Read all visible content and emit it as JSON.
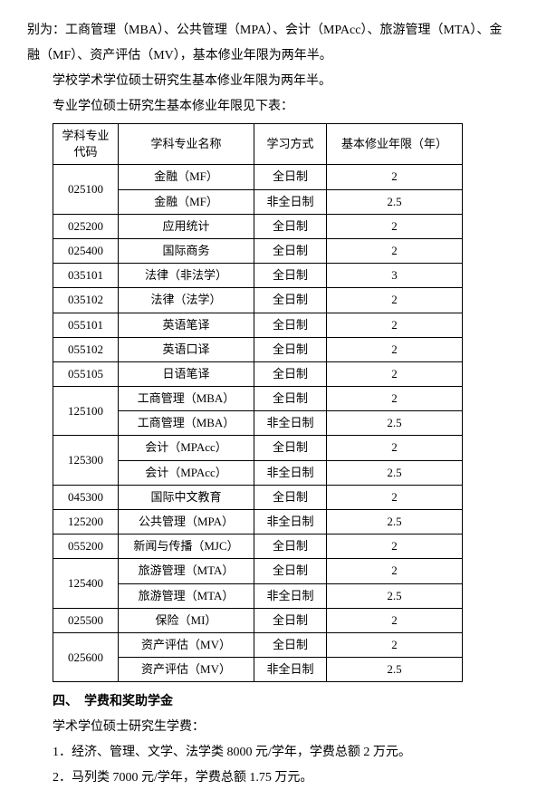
{
  "intro": {
    "line1": "别为：工商管理（MBA）、公共管理（MPA）、会计（MPAcc）、旅游管理（MTA）、金融（MF）、资产评估（MV），基本修业年限为两年半。",
    "line2": "学校学术学位硕士研究生基本修业年限为两年半。",
    "line3": "专业学位硕士研究生基本修业年限见下表："
  },
  "table": {
    "headers": [
      "学科专业代码",
      "学科专业名称",
      "学习方式",
      "基本修业年限（年）"
    ],
    "rows": [
      {
        "code": "025100",
        "codeRowspan": 2,
        "name": "金融（MF）",
        "mode": "全日制",
        "years": "2"
      },
      {
        "name": "金融（MF）",
        "mode": "非全日制",
        "years": "2.5"
      },
      {
        "code": "025200",
        "codeRowspan": 1,
        "name": "应用统计",
        "mode": "全日制",
        "years": "2"
      },
      {
        "code": "025400",
        "codeRowspan": 1,
        "name": "国际商务",
        "mode": "全日制",
        "years": "2"
      },
      {
        "code": "035101",
        "codeRowspan": 1,
        "name": "法律（非法学）",
        "mode": "全日制",
        "years": "3"
      },
      {
        "code": "035102",
        "codeRowspan": 1,
        "name": "法律（法学）",
        "mode": "全日制",
        "years": "2"
      },
      {
        "code": "055101",
        "codeRowspan": 1,
        "name": "英语笔译",
        "mode": "全日制",
        "years": "2"
      },
      {
        "code": "055102",
        "codeRowspan": 1,
        "name": "英语口译",
        "mode": "全日制",
        "years": "2"
      },
      {
        "code": "055105",
        "codeRowspan": 1,
        "name": "日语笔译",
        "mode": "全日制",
        "years": "2"
      },
      {
        "code": "125100",
        "codeRowspan": 2,
        "name": "工商管理（MBA）",
        "mode": "全日制",
        "years": "2"
      },
      {
        "name": "工商管理（MBA）",
        "mode": "非全日制",
        "years": "2.5"
      },
      {
        "code": "125300",
        "codeRowspan": 2,
        "name": "会计（MPAcc）",
        "mode": "全日制",
        "years": "2"
      },
      {
        "name": "会计（MPAcc）",
        "mode": "非全日制",
        "years": "2.5"
      },
      {
        "code": "045300",
        "codeRowspan": 1,
        "name": "国际中文教育",
        "mode": "全日制",
        "years": "2"
      },
      {
        "code": "125200",
        "codeRowspan": 1,
        "name": "公共管理（MPA）",
        "mode": "非全日制",
        "years": "2.5"
      },
      {
        "code": "055200",
        "codeRowspan": 1,
        "name": "新闻与传播（MJC）",
        "mode": "全日制",
        "years": "2"
      },
      {
        "code": "125400",
        "codeRowspan": 2,
        "name": "旅游管理（MTA）",
        "mode": "全日制",
        "years": "2"
      },
      {
        "name": "旅游管理（MTA）",
        "mode": "非全日制",
        "years": "2.5"
      },
      {
        "code": "025500",
        "codeRowspan": 1,
        "name": "保险（MI）",
        "mode": "全日制",
        "years": "2"
      },
      {
        "code": "025600",
        "codeRowspan": 2,
        "name": "资产评估（MV）",
        "mode": "全日制",
        "years": "2"
      },
      {
        "name": "资产评估（MV）",
        "mode": "非全日制",
        "years": "2.5"
      }
    ]
  },
  "section4": {
    "title": "四、　学费和奖助学金",
    "sub": "学术学位硕士研究生学费：",
    "item1": "1．经济、管理、文学、法学类 8000 元/学年，学费总额 2 万元。",
    "item2": "2．马列类 7000 元/学年，学费总额 1.75 万元。"
  }
}
